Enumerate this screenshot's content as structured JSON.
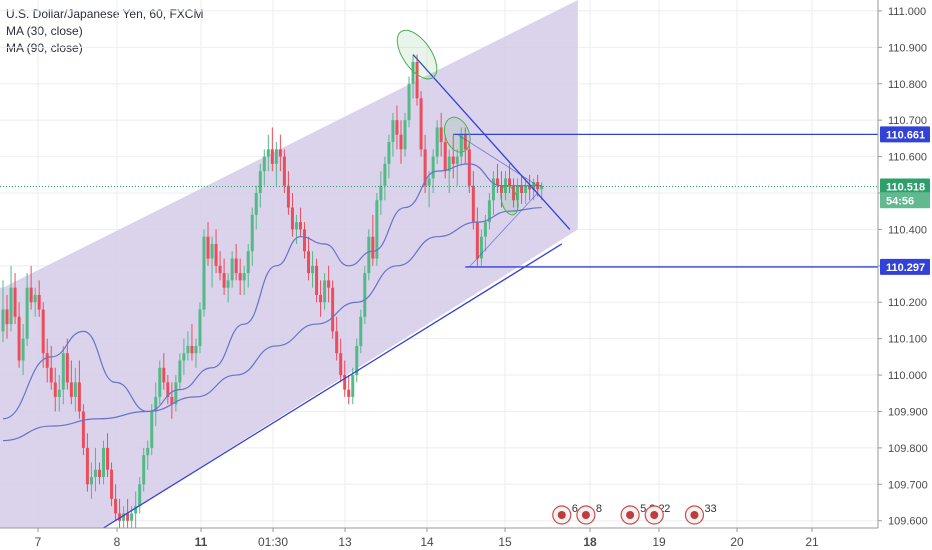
{
  "legend": {
    "title": "U.S. Dollar/Japanese Yen, 60, FXCM",
    "ma1": "MA (30, close)",
    "ma2": "MA (90, close)"
  },
  "colors": {
    "up": "#53b987",
    "down": "#eb4d5c",
    "ma": "#6b72c6",
    "channel_fill": "#d3cbe8",
    "trendline": "#3342d6",
    "grid": "#eceef2",
    "ellipse": "#4caf50"
  },
  "chart_data": {
    "type": "candlestick",
    "symbol": "USDJPY",
    "timeframe": "60",
    "source": "FXCM",
    "ylim": [
      109.58,
      111.03
    ],
    "y_ticks": [
      "111.000",
      "110.900",
      "110.800",
      "110.700",
      "110.600",
      "110.500",
      "110.400",
      "110.300",
      "110.200",
      "110.100",
      "110.000",
      "109.900",
      "109.800",
      "109.700",
      "109.600"
    ],
    "x_ticks": [
      "7",
      "8",
      "11",
      "01:30",
      "13",
      "14",
      "15",
      "18",
      "19",
      "20",
      "21"
    ],
    "bar_count": 165,
    "candles_summary": {
      "start_close": 110.2,
      "low_on_8": 109.58,
      "high_on_15": 110.88,
      "low_on_18": 110.297,
      "last_close": 110.518
    },
    "candles": [
      [
        110.12,
        110.26,
        110.09,
        110.18
      ],
      [
        110.18,
        110.22,
        110.1,
        110.14
      ],
      [
        110.14,
        110.3,
        110.12,
        110.24
      ],
      [
        110.24,
        110.28,
        110.14,
        110.16
      ],
      [
        110.16,
        110.2,
        110.02,
        110.04
      ],
      [
        110.04,
        110.14,
        110.0,
        110.1
      ],
      [
        110.1,
        110.28,
        110.08,
        110.24
      ],
      [
        110.24,
        110.3,
        110.18,
        110.2
      ],
      [
        110.2,
        110.24,
        110.16,
        110.22
      ],
      [
        110.22,
        110.26,
        110.16,
        110.18
      ],
      [
        110.18,
        110.2,
        110.02,
        110.06
      ],
      [
        110.06,
        110.1,
        109.98,
        110.02
      ],
      [
        110.02,
        110.08,
        109.96,
        109.98
      ],
      [
        109.98,
        110.02,
        109.9,
        109.94
      ],
      [
        109.94,
        110.0,
        109.9,
        109.96
      ],
      [
        109.96,
        110.08,
        109.92,
        110.06
      ],
      [
        110.06,
        110.1,
        109.96,
        109.98
      ],
      [
        109.98,
        110.04,
        109.92,
        109.94
      ],
      [
        109.94,
        110.02,
        109.9,
        109.98
      ],
      [
        109.98,
        110.04,
        109.88,
        109.9
      ],
      [
        109.9,
        109.92,
        109.78,
        109.8
      ],
      [
        109.8,
        109.84,
        109.68,
        109.7
      ],
      [
        109.7,
        109.76,
        109.66,
        109.72
      ],
      [
        109.72,
        109.8,
        109.68,
        109.74
      ],
      [
        109.74,
        109.76,
        109.7,
        109.72
      ],
      [
        109.72,
        109.82,
        109.7,
        109.8
      ],
      [
        109.8,
        109.84,
        109.72,
        109.74
      ],
      [
        109.74,
        109.76,
        109.64,
        109.66
      ],
      [
        109.66,
        109.7,
        109.6,
        109.62
      ],
      [
        109.62,
        109.66,
        109.58,
        109.6
      ],
      [
        109.6,
        109.64,
        109.58,
        109.62
      ],
      [
        109.62,
        109.66,
        109.58,
        109.6
      ],
      [
        109.6,
        109.64,
        109.58,
        109.62
      ],
      [
        109.62,
        109.68,
        109.58,
        109.64
      ],
      [
        109.64,
        109.72,
        109.62,
        109.7
      ],
      [
        109.7,
        109.8,
        109.68,
        109.78
      ],
      [
        109.78,
        109.82,
        109.74,
        109.8
      ],
      [
        109.8,
        109.92,
        109.78,
        109.9
      ],
      [
        109.9,
        109.98,
        109.86,
        109.94
      ],
      [
        109.94,
        110.04,
        109.92,
        110.02
      ],
      [
        110.02,
        110.06,
        109.96,
        109.98
      ],
      [
        109.98,
        110.0,
        109.92,
        109.94
      ],
      [
        109.94,
        109.98,
        109.88,
        109.92
      ],
      [
        109.92,
        110.0,
        109.9,
        109.98
      ],
      [
        109.98,
        110.06,
        109.96,
        110.04
      ],
      [
        110.04,
        110.1,
        110.0,
        110.06
      ],
      [
        110.06,
        110.12,
        110.04,
        110.08
      ],
      [
        110.08,
        110.14,
        110.04,
        110.06
      ],
      [
        110.06,
        110.1,
        110.02,
        110.08
      ],
      [
        110.08,
        110.2,
        110.06,
        110.18
      ],
      [
        110.18,
        110.4,
        110.16,
        110.38
      ],
      [
        110.38,
        110.42,
        110.3,
        110.32
      ],
      [
        110.32,
        110.38,
        110.24,
        110.36
      ],
      [
        110.36,
        110.4,
        110.28,
        110.3
      ],
      [
        110.3,
        110.34,
        110.26,
        110.28
      ],
      [
        110.28,
        110.32,
        110.22,
        110.24
      ],
      [
        110.24,
        110.28,
        110.2,
        110.26
      ],
      [
        110.26,
        110.34,
        110.24,
        110.32
      ],
      [
        110.32,
        110.36,
        110.26,
        110.28
      ],
      [
        110.28,
        110.32,
        110.22,
        110.26
      ],
      [
        110.26,
        110.3,
        110.22,
        110.28
      ],
      [
        110.28,
        110.36,
        110.24,
        110.34
      ],
      [
        110.34,
        110.46,
        110.3,
        110.44
      ],
      [
        110.44,
        110.52,
        110.4,
        110.5
      ],
      [
        110.5,
        110.58,
        110.46,
        110.56
      ],
      [
        110.56,
        110.62,
        110.52,
        110.6
      ],
      [
        110.6,
        110.66,
        110.56,
        110.62
      ],
      [
        110.62,
        110.68,
        110.56,
        110.58
      ],
      [
        110.58,
        110.64,
        110.52,
        110.62
      ],
      [
        110.62,
        110.66,
        110.56,
        110.6
      ],
      [
        110.6,
        110.62,
        110.5,
        110.52
      ],
      [
        110.52,
        110.56,
        110.44,
        110.46
      ],
      [
        110.46,
        110.5,
        110.38,
        110.4
      ],
      [
        110.4,
        110.44,
        110.36,
        110.42
      ],
      [
        110.42,
        110.46,
        110.38,
        110.4
      ],
      [
        110.4,
        110.42,
        110.32,
        110.34
      ],
      [
        110.34,
        110.38,
        110.26,
        110.28
      ],
      [
        110.28,
        110.34,
        110.24,
        110.3
      ],
      [
        110.3,
        110.32,
        110.2,
        110.22
      ],
      [
        110.22,
        110.26,
        110.16,
        110.2
      ],
      [
        110.2,
        110.28,
        110.18,
        110.26
      ],
      [
        110.26,
        110.3,
        110.2,
        110.24
      ],
      [
        110.24,
        110.26,
        110.1,
        110.12
      ],
      [
        110.12,
        110.16,
        110.04,
        110.06
      ],
      [
        110.06,
        110.1,
        109.98,
        110.0
      ],
      [
        110.0,
        110.04,
        109.94,
        109.96
      ],
      [
        109.96,
        110.0,
        109.92,
        109.94
      ],
      [
        109.94,
        110.02,
        109.92,
        110.0
      ],
      [
        110.0,
        110.1,
        109.98,
        110.08
      ],
      [
        110.08,
        110.18,
        110.06,
        110.16
      ],
      [
        110.16,
        110.3,
        110.14,
        110.28
      ],
      [
        110.28,
        110.4,
        110.26,
        110.38
      ],
      [
        110.38,
        110.44,
        110.3,
        110.32
      ],
      [
        110.32,
        110.5,
        110.3,
        110.48
      ],
      [
        110.48,
        110.56,
        110.44,
        110.52
      ],
      [
        110.52,
        110.6,
        110.48,
        110.58
      ],
      [
        110.58,
        110.66,
        110.54,
        110.64
      ],
      [
        110.64,
        110.72,
        110.6,
        110.7
      ],
      [
        110.7,
        110.74,
        110.62,
        110.66
      ],
      [
        110.66,
        110.7,
        110.58,
        110.62
      ],
      [
        110.62,
        110.72,
        110.6,
        110.7
      ],
      [
        110.7,
        110.82,
        110.68,
        110.8
      ],
      [
        110.8,
        110.88,
        110.76,
        110.86
      ],
      [
        110.86,
        110.88,
        110.74,
        110.76
      ],
      [
        110.76,
        110.78,
        110.6,
        110.62
      ],
      [
        110.62,
        110.66,
        110.5,
        110.52
      ],
      [
        110.52,
        110.56,
        110.46,
        110.54
      ],
      [
        110.54,
        110.62,
        110.5,
        110.6
      ],
      [
        110.6,
        110.7,
        110.58,
        110.68
      ],
      [
        110.68,
        110.72,
        110.6,
        110.64
      ],
      [
        110.64,
        110.66,
        110.54,
        110.56
      ],
      [
        110.56,
        110.62,
        110.5,
        110.6
      ],
      [
        110.6,
        110.66,
        110.54,
        110.58
      ],
      [
        110.58,
        110.62,
        110.52,
        110.6
      ],
      [
        110.6,
        110.68,
        110.58,
        110.66
      ],
      [
        110.66,
        110.68,
        110.58,
        110.62
      ],
      [
        110.62,
        110.64,
        110.5,
        110.52
      ],
      [
        110.52,
        110.56,
        110.4,
        110.42
      ],
      [
        110.42,
        110.46,
        110.3,
        110.32
      ],
      [
        110.32,
        110.4,
        110.3,
        110.38
      ],
      [
        110.38,
        110.44,
        110.34,
        110.42
      ],
      [
        110.42,
        110.5,
        110.4,
        110.48
      ],
      [
        110.48,
        110.56,
        110.44,
        110.54
      ],
      [
        110.54,
        110.58,
        110.5,
        110.52
      ],
      [
        110.52,
        110.56,
        110.46,
        110.5
      ],
      [
        110.5,
        110.56,
        110.48,
        110.54
      ],
      [
        110.54,
        110.58,
        110.5,
        110.52
      ],
      [
        110.52,
        110.54,
        110.46,
        110.48
      ],
      [
        110.48,
        110.54,
        110.46,
        110.52
      ],
      [
        110.52,
        110.55,
        110.47,
        110.5
      ],
      [
        110.5,
        110.54,
        110.47,
        110.52
      ],
      [
        110.52,
        110.55,
        110.48,
        110.51
      ],
      [
        110.51,
        110.54,
        110.48,
        110.53
      ],
      [
        110.53,
        110.55,
        110.49,
        110.51
      ],
      [
        110.51,
        110.53,
        110.48,
        110.52
      ]
    ],
    "ma30": [
      [
        0,
        109.88
      ],
      [
        12,
        110.05
      ],
      [
        20,
        110.12
      ],
      [
        28,
        109.98
      ],
      [
        36,
        109.9
      ],
      [
        44,
        109.96
      ],
      [
        52,
        110.02
      ],
      [
        60,
        110.14
      ],
      [
        68,
        110.3
      ],
      [
        74,
        110.38
      ],
      [
        80,
        110.36
      ],
      [
        86,
        110.3
      ],
      [
        92,
        110.34
      ],
      [
        100,
        110.46
      ],
      [
        108,
        110.56
      ],
      [
        116,
        110.58
      ],
      [
        124,
        110.52
      ],
      [
        134,
        110.52
      ]
    ],
    "ma90": [
      [
        0,
        109.82
      ],
      [
        12,
        109.86
      ],
      [
        24,
        109.88
      ],
      [
        36,
        109.9
      ],
      [
        48,
        109.94
      ],
      [
        58,
        110.0
      ],
      [
        68,
        110.08
      ],
      [
        78,
        110.14
      ],
      [
        88,
        110.2
      ],
      [
        98,
        110.3
      ],
      [
        108,
        110.38
      ],
      [
        118,
        110.42
      ],
      [
        126,
        110.45
      ],
      [
        134,
        110.46
      ]
    ],
    "channel": {
      "upper": [
        [
          0,
          110.24
        ],
        [
          143,
          111.03
        ]
      ],
      "lower": [
        [
          25,
          109.58
        ],
        [
          143,
          110.4
        ]
      ],
      "right_index": 143
    },
    "trendlines": {
      "resistance": {
        "from": [
          102,
          110.88
        ],
        "to": [
          141,
          110.4
        ]
      },
      "support": {
        "from": [
          25,
          109.58
        ],
        "to": [
          139,
          110.36
        ]
      },
      "triangle_top": {
        "from": [
          113,
          110.661
        ],
        "to": [
          133,
          110.52
        ]
      },
      "triangle_bottom": {
        "from": [
          116,
          110.297
        ],
        "to": [
          133,
          110.5
        ]
      }
    },
    "horizontal_levels": [
      {
        "label": "110.661",
        "value": 110.661,
        "from_index": 112
      },
      {
        "label": "110.297",
        "value": 110.297,
        "from_index": 115
      }
    ],
    "ellipses": [
      {
        "center": [
          103,
          110.88
        ]
      },
      {
        "center": [
          113,
          110.66
        ]
      },
      {
        "center": [
          126,
          110.48
        ]
      }
    ],
    "price_labels": [
      {
        "label": "110.661",
        "value": 110.661,
        "style": "line"
      },
      {
        "label": "110.297",
        "value": 110.297,
        "style": "line"
      },
      {
        "label": "110.518",
        "value": 110.518,
        "style": "last"
      },
      {
        "label": "54:56",
        "value": 110.48,
        "style": "timer"
      }
    ],
    "events": [
      {
        "x_index": 139,
        "count": "6"
      },
      {
        "x_index": 145,
        "count": "8"
      },
      {
        "x_index": 156,
        "count": "5 2 2"
      },
      {
        "x_index": 162,
        "count": "2"
      },
      {
        "x_index": 172,
        "count": "33"
      }
    ]
  }
}
